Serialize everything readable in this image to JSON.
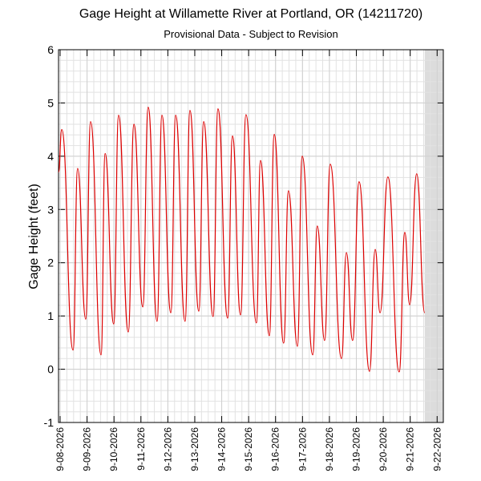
{
  "chart_data": {
    "type": "line",
    "title": "Gage Height at Willamette River at Portland, OR (14211720)",
    "subtitle": "Provisional Data - Subject to Revision",
    "y_label": "Gage Height (feet)",
    "x": [
      -0.06,
      0.06,
      0.48,
      0.65,
      0.95,
      1.13,
      1.52,
      1.67,
      1.99,
      2.17,
      2.53,
      2.74,
      3.07,
      3.27,
      3.6,
      3.78,
      4.11,
      4.29,
      4.64,
      4.82,
      5.15,
      5.33,
      5.68,
      5.86,
      6.22,
      6.4,
      6.7,
      6.9,
      7.29,
      7.44,
      7.77,
      7.95,
      8.3,
      8.48,
      8.81,
      8.99,
      9.38,
      9.55,
      9.82,
      10.03,
      10.45,
      10.63,
      10.86,
      11.1,
      11.49,
      11.7,
      11.88,
      12.17,
      12.59,
      12.8,
      12.98,
      13.24,
      13.54
    ],
    "series": [
      {
        "color": "#dd0000",
        "values": [
          3.7,
          4.5,
          0.36,
          3.77,
          0.94,
          4.65,
          0.27,
          4.05,
          0.85,
          4.77,
          0.7,
          4.6,
          1.17,
          4.92,
          0.9,
          4.77,
          1.06,
          4.77,
          0.9,
          4.86,
          1.09,
          4.65,
          0.99,
          4.89,
          0.96,
          4.38,
          1.02,
          4.78,
          0.87,
          3.92,
          0.63,
          4.41,
          0.49,
          3.35,
          0.43,
          4.0,
          0.27,
          2.69,
          0.54,
          3.85,
          0.2,
          2.19,
          0.54,
          3.52,
          -0.04,
          2.25,
          1.06,
          3.61,
          -0.05,
          2.57,
          1.21,
          3.67,
          1.06
        ]
      }
    ],
    "xlim": [
      -0.06,
      14.23
    ],
    "xticks": [
      {
        "value": 0,
        "label": "9-08-2026"
      },
      {
        "value": 1,
        "label": "9-09-2026"
      },
      {
        "value": 2,
        "label": "9-10-2026"
      },
      {
        "value": 3,
        "label": "9-11-2026"
      },
      {
        "value": 4,
        "label": "9-12-2026"
      },
      {
        "value": 5,
        "label": "9-13-2026"
      },
      {
        "value": 6,
        "label": "9-14-2026"
      },
      {
        "value": 7,
        "label": "9-15-2026"
      },
      {
        "value": 8,
        "label": "9-16-2026"
      },
      {
        "value": 9,
        "label": "9-17-2026"
      },
      {
        "value": 10,
        "label": "9-18-2026"
      },
      {
        "value": 11,
        "label": "9-19-2026"
      },
      {
        "value": 12,
        "label": "9-20-2026"
      },
      {
        "value": 13,
        "label": "9-21-2026"
      },
      {
        "value": 14,
        "label": "9-22-2026"
      }
    ],
    "ylim": [
      -1,
      6
    ],
    "yticks": [
      -1,
      0,
      1,
      2,
      3,
      4,
      5,
      6
    ],
    "grid": true,
    "minor_grid": {
      "x_step": 0.25,
      "y_step": 0.2
    },
    "shaded_xrange": [
      13.54,
      14.23
    ],
    "shade_color": "#dcdcdc"
  }
}
